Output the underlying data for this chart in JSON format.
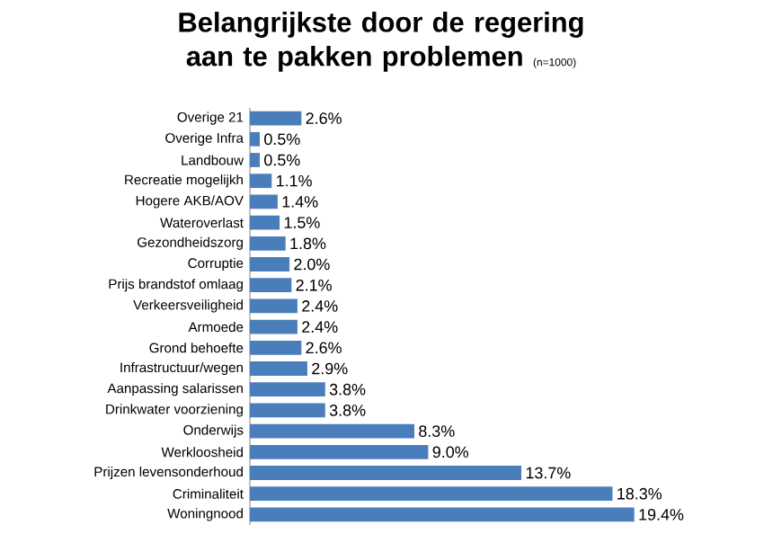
{
  "chart_data": {
    "type": "bar",
    "orientation": "horizontal",
    "title": "Belangrijkste door de regering aan te pakken problemen",
    "subtitle": "(n=1000)",
    "categories": [
      "Overige 21",
      "Overige Infra",
      "Landbouw",
      "Recreatie mogelijkh",
      "Hogere AKB/AOV",
      "Wateroverlast",
      "Gezondheidszorg",
      "Corruptie",
      "Prijs brandstof omlaag",
      "Verkeersveiligheid",
      "Armoede",
      "Grond behoefte",
      "Infrastructuur/wegen",
      "Aanpassing salarissen",
      "Drinkwater voorziening",
      "Onderwijs",
      "Werkloosheid",
      "Prijzen levensonderhoud",
      "Criminaliteit",
      "Woningnood"
    ],
    "values": [
      2.6,
      0.5,
      0.5,
      1.1,
      1.4,
      1.5,
      1.8,
      2.0,
      2.1,
      2.4,
      2.4,
      2.6,
      2.9,
      3.8,
      3.8,
      8.3,
      9.0,
      13.7,
      18.3,
      19.4
    ],
    "value_labels": [
      "2.6%",
      "0.5%",
      "0.5%",
      "1.1%",
      "1.4%",
      "1.5%",
      "1.8%",
      "2.0%",
      "2.1%",
      "2.4%",
      "2.4%",
      "2.6%",
      "2.9%",
      "3.8%",
      "3.8%",
      "8.3%",
      "9.0%",
      "13.7%",
      "18.3%",
      "19.4%"
    ],
    "color": "#4a7ebb",
    "tick_labels": "y"
  }
}
